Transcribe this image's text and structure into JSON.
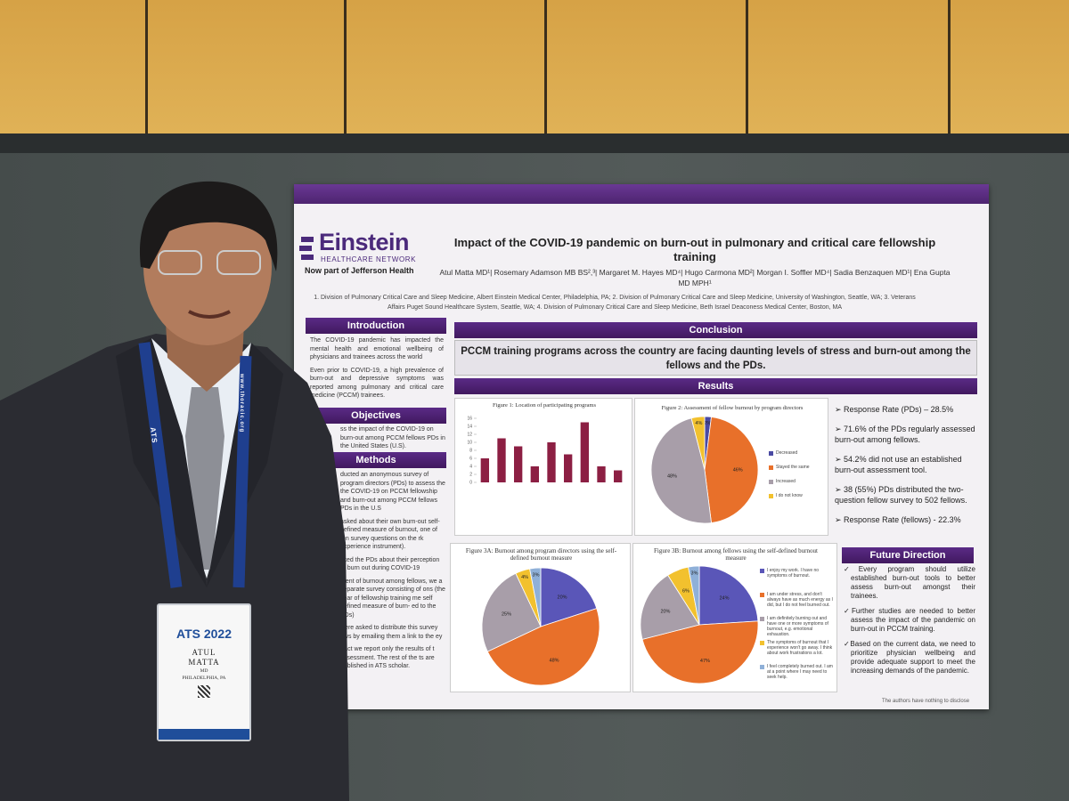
{
  "poster": {
    "logo": {
      "name": "Einstein",
      "subtitle": "HEALTHCARE NETWORK",
      "tagline": "Now part of Jefferson Health"
    },
    "title": "Impact of the COVID-19 pandemic on burn-out in pulmonary and critical care fellowship training",
    "authors": "Atul Matta MD¹| Rosemary Adamson MB BS²,³| Margaret M. Hayes MD⁴| Hugo Carmona MD²| Morgan I. Soffler MD⁴| Sadia Benzaquen MD¹| Ena Gupta MD MPH¹",
    "affiliations": "1. Division of Pulmonary Critical Care and Sleep Medicine, Albert Einstein Medical Center, Philadelphia, PA; 2. Division of Pulmonary Critical Care and Sleep Medicine, University of Washington, Seattle, WA; 3. Veterans Affairs Puget Sound Healthcare System, Seattle, WA; 4. Division of Pulmonary Critical Care and Sleep Medicine, Beth Israel Deaconess Medical Center, Boston, MA",
    "introduction": {
      "heading": "Introduction",
      "items": [
        "The COVID-19 pandemic has impacted the mental health and emotional wellbeing of physicians and trainees across the world",
        "Even prior to COVID-19, a high prevalence of burn-out and depressive symptoms was reported among pulmonary and critical care medicine (PCCM) trainees."
      ]
    },
    "objectives": {
      "heading": "Objectives",
      "text": "ss the impact of the COVID-19 on burn-out among PCCM fellows PDs in the United States (U.S)."
    },
    "methods": {
      "heading": "Methods",
      "items": [
        "ducted an anonymous survey of program directors (PDs) to assess the the COVID-19 on PCCM fellowship and burn-out among PCCM fellows PDs in the U.S",
        "asked about their own burn-out self-defined measure of burnout, one of ten survey questions on the rk experience instrument).",
        "sked the PDs about their perception rs burn out during COVID-19",
        "ment of burnout among fellows, we a separate survey consisting of ons (the year of fellowship training me self defined measure of burn- ed to the PDs)",
        "were asked to distribute this survey ows by emailing them a link to the ey",
        "tract we report only the results of t assessment. The rest of the ts are published in ATS scholar."
      ]
    },
    "conclusion": {
      "heading": "Conclusion",
      "text": "PCCM training programs across the country are facing daunting levels of stress and burn-out among the fellows and the PDs."
    },
    "results": {
      "heading": "Results",
      "items": [
        "Response Rate (PDs) – 28.5%",
        "71.6% of the PDs regularly assessed burn-out among fellows.",
        "54.2% did not use an established burn-out assessment tool.",
        "38 (55%) PDs distributed the two-question fellow survey to 502 fellows.",
        "Response Rate (fellows) - 22.3%"
      ]
    },
    "future_direction": {
      "heading": "Future Direction",
      "items": [
        "Every program should utilize established burn-out tools to better assess burn-out amongst their trainees.",
        "Further studies are needed to better assess the impact of the pandemic on burn-out in PCCM training.",
        "Based on the current data, we need to prioritize physician wellbeing and provide adequate support to meet the increasing demands of the pandemic."
      ]
    },
    "footer": "The authors have nothing to disclose"
  },
  "badge": {
    "event": "ATS 2022",
    "first_name": "ATUL",
    "last_name": "MATTA",
    "degree": "MD",
    "city": "PHILADELPHIA, PA",
    "lanyard": "ATS",
    "lanyard_url": "www.thoracic.org"
  },
  "chart_data": [
    {
      "type": "bar",
      "title": "Figure 1: Location of participating programs",
      "categories": [
        null,
        null,
        null,
        null,
        null,
        null,
        null,
        null,
        null
      ],
      "values": [
        6,
        11,
        9,
        4,
        10,
        7,
        15,
        4,
        3
      ],
      "color": "#8c1f43",
      "ylim": [
        0,
        16
      ],
      "yticks": [
        0,
        2,
        4,
        6,
        8,
        10,
        12,
        14,
        16
      ]
    },
    {
      "type": "pie",
      "title": "Figure 2: Assessment of fellow burnout by program directors",
      "categories": [
        "Decreased",
        "Stayed the same",
        "Increased",
        "I do not know"
      ],
      "values": [
        2,
        46,
        48,
        4
      ],
      "value_labels": [
        "2%",
        "46%",
        "48%",
        "4%"
      ],
      "colors": [
        "#4a4aa3",
        "#e8702a",
        "#a89ea9",
        "#f2c12e"
      ]
    },
    {
      "type": "pie",
      "title": "Figure 3A: Burnout among program directors using the self-defined burnout measure",
      "values": [
        20,
        48,
        25,
        4,
        3
      ],
      "value_labels": [
        "20%",
        "48%",
        "25%",
        "4%",
        "3%"
      ],
      "colors": [
        "#5a56b8",
        "#e8702a",
        "#a89ea9",
        "#f2c12e",
        "#8fb0d8"
      ]
    },
    {
      "type": "pie",
      "title": "Figure 3B: Burnout among fellows using the self-defined burnout measure",
      "categories": [
        "I enjoy my work. I have no symptoms of burnout.",
        "I am under stress, and don't always have as much energy as I did, but I do not feel burned out.",
        "I am definitely burning out and have one or more symptoms of burnout, e.g. emotional exhaustion.",
        "The symptoms of burnout that I experience won't go away. I think about work frustrations a lot.",
        "I feel completely burned out. I am at a point where I may need to seek help."
      ],
      "values": [
        24,
        47,
        20,
        6,
        3
      ],
      "value_labels": [
        "24%",
        "47%",
        "20%",
        "6%",
        "3%"
      ],
      "colors": [
        "#5a56b8",
        "#e8702a",
        "#a89ea9",
        "#f2c12e",
        "#8fb0d8"
      ]
    }
  ]
}
